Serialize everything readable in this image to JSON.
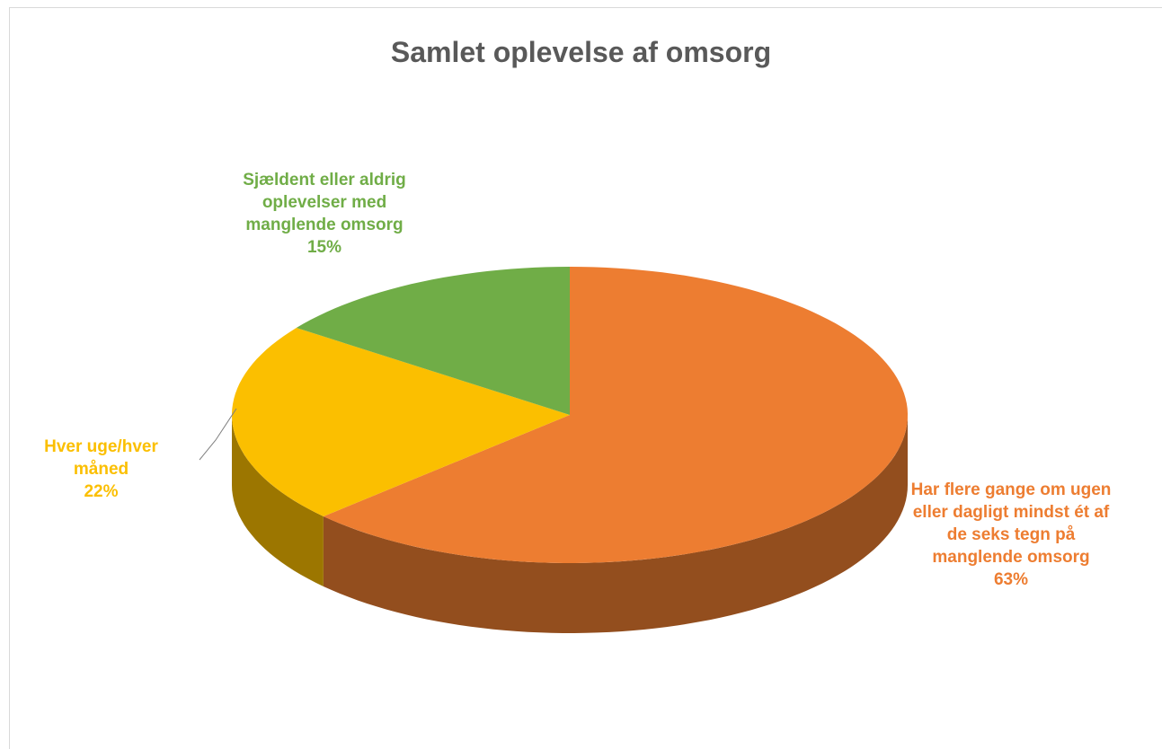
{
  "chart_data": {
    "type": "pie",
    "title": "Samlet oplevelse af omsorg",
    "categories": [
      "Har flere gange om ugen eller dagligt mindst ét af de seks tegn på manglende omsorg",
      "Hver uge/hver måned",
      "Sjældent eller aldrig oplevelser med manglende omsorg"
    ],
    "values": [
      63,
      22,
      15
    ],
    "value_labels": [
      "63%",
      "22%",
      "15%"
    ],
    "colors": [
      "#ed7d31",
      "#fbbf00",
      "#70ad47"
    ]
  }
}
